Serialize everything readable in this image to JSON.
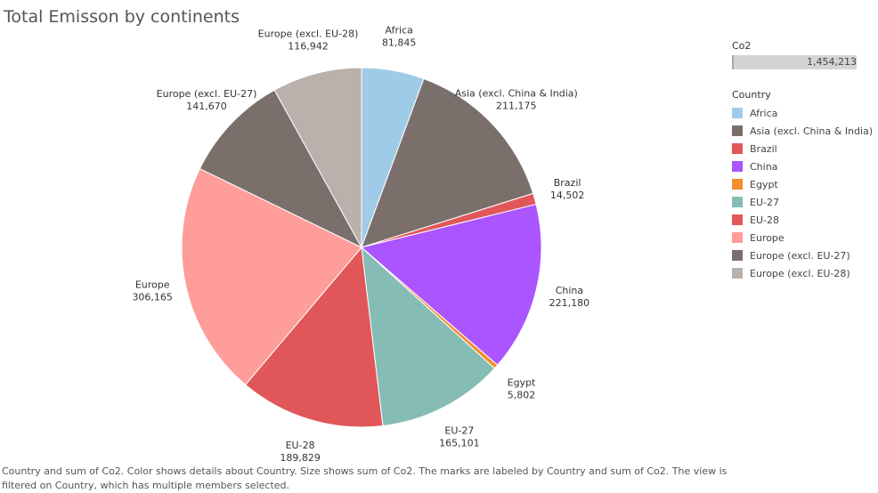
{
  "header": {
    "title": "Total Emisson by continents"
  },
  "size_legend": {
    "title": "Co2",
    "total": "1,454,213"
  },
  "color_legend": {
    "title": "Country",
    "items": [
      {
        "label": "Africa",
        "color": "#a0cbe8"
      },
      {
        "label": "Asia (excl. China & India)",
        "color": "#7a6f6b"
      },
      {
        "label": "Brazil",
        "color": "#e15759"
      },
      {
        "label": "China",
        "color": "#aa55ff"
      },
      {
        "label": "Egypt",
        "color": "#f28e2b"
      },
      {
        "label": "EU-27",
        "color": "#86bcb6"
      },
      {
        "label": "EU-28",
        "color": "#e15759"
      },
      {
        "label": "Europe",
        "color": "#ff9d9a"
      },
      {
        "label": "Europe (excl. EU-27)",
        "color": "#7a6f6b"
      },
      {
        "label": "Europe (excl. EU-28)",
        "color": "#bab0ac"
      }
    ]
  },
  "caption": "Country and sum of Co2.  Color shows details about Country.  Size shows sum of Co2.  The marks are labeled by Country and sum of Co2. The view is filtered on Country, which has multiple members selected.",
  "chart_data": {
    "type": "pie",
    "title": "Total Emisson by continents",
    "categories": [
      "Africa",
      "Asia (excl. China & India)",
      "Brazil",
      "China",
      "Egypt",
      "EU-27",
      "EU-28",
      "Europe",
      "Europe (excl. EU-27)",
      "Europe (excl. EU-28)"
    ],
    "values": [
      81845,
      211175,
      14502,
      221180,
      5802,
      165101,
      189829,
      306165,
      141670,
      116942
    ],
    "value_labels": [
      "81,845",
      "211,175",
      "14,502",
      "221,180",
      "5,802",
      "165,101",
      "189,829",
      "306,165",
      "141,670",
      "116,942"
    ],
    "colors": [
      "#a0cbe8",
      "#7a6f6b",
      "#e15759",
      "#aa55ff",
      "#f28e2b",
      "#86bcb6",
      "#e15759",
      "#ff9d9a",
      "#7a6f6b",
      "#bab0ac"
    ],
    "legend": "right"
  }
}
